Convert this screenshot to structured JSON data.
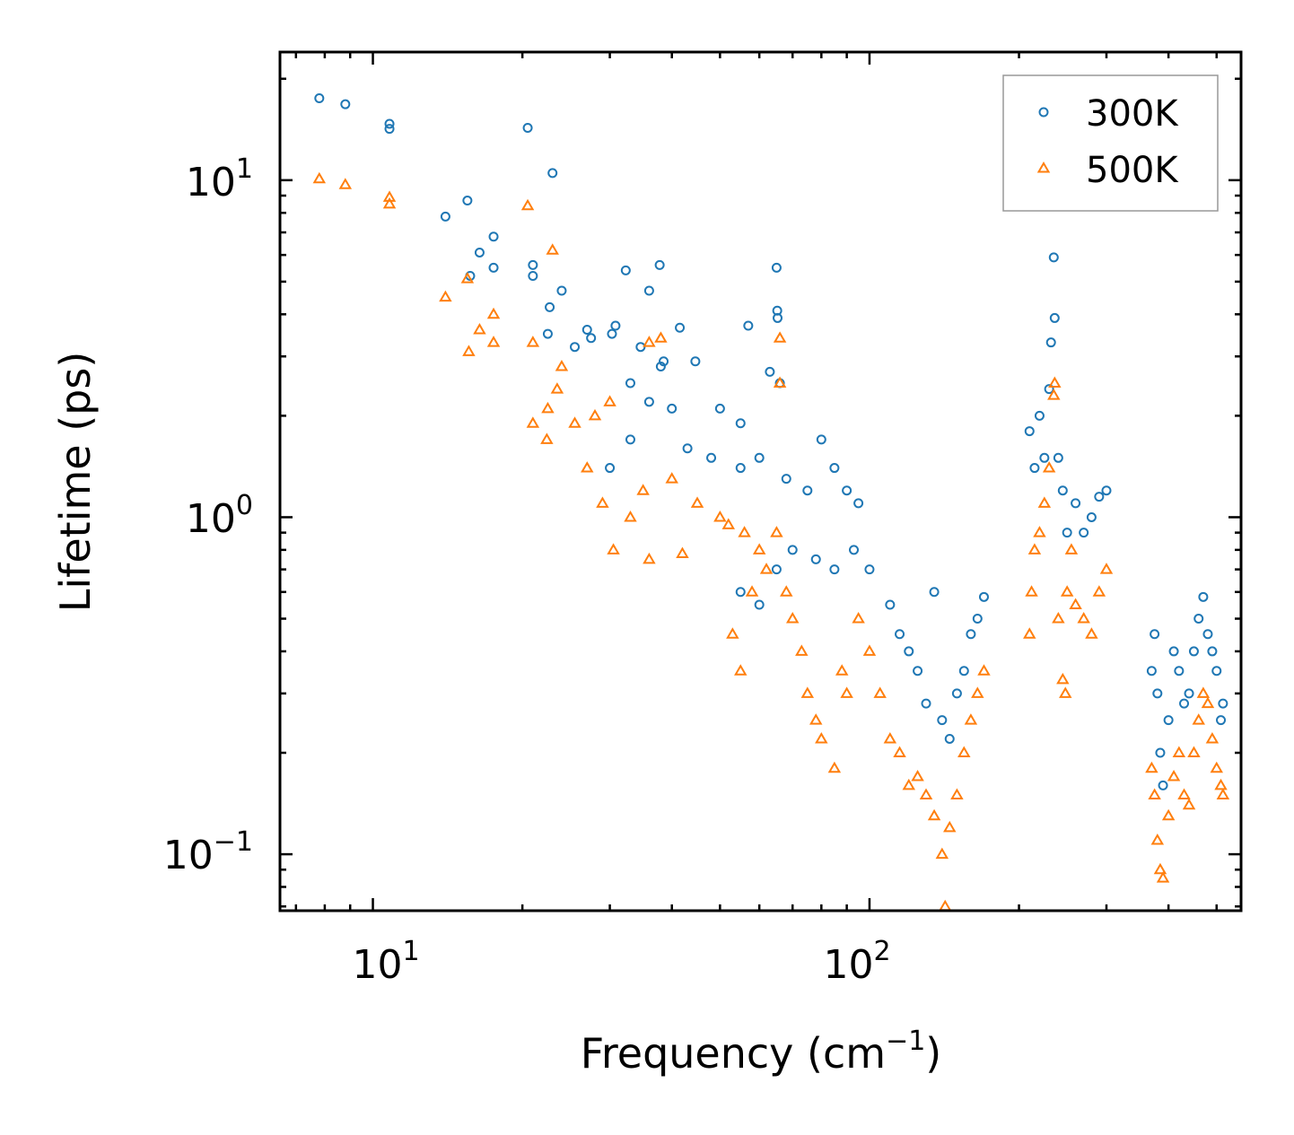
{
  "chart_data": {
    "type": "scatter",
    "xscale": "log",
    "yscale": "log",
    "xlabel_text": "Frequency (cm",
    "xlabel_sup": "−1",
    "xlabel_tail": ")",
    "ylabel": "Lifetime (ps)",
    "xlim": [
      6.5,
      560
    ],
    "ylim": [
      0.068,
      24
    ],
    "xticks": [
      {
        "base": "10",
        "exp": "1",
        "value": 10
      },
      {
        "base": "10",
        "exp": "2",
        "value": 100
      }
    ],
    "yticks": [
      {
        "base": "10",
        "exp": "1",
        "value": 10
      },
      {
        "base": "10",
        "exp": "0",
        "value": 1
      },
      {
        "base": "10",
        "exp": "−1",
        "value": 0.1
      }
    ],
    "legend": {
      "placement": "top-right",
      "entries": [
        "300K",
        "500K"
      ]
    },
    "series": [
      {
        "name": "300K",
        "color": "#1f77b4",
        "marker": "circle",
        "points": [
          [
            7.8,
            17.5
          ],
          [
            8.8,
            16.8
          ],
          [
            10.8,
            14.7
          ],
          [
            10.8,
            14.2
          ],
          [
            14,
            7.8
          ],
          [
            15.5,
            8.7
          ],
          [
            16.4,
            6.1
          ],
          [
            17.5,
            6.8
          ],
          [
            17.5,
            5.5
          ],
          [
            15.7,
            5.2
          ],
          [
            20.5,
            14.3
          ],
          [
            21,
            5.6
          ],
          [
            21,
            5.2
          ],
          [
            22.5,
            3.5
          ],
          [
            22.7,
            4.2
          ],
          [
            23,
            10.5
          ],
          [
            24,
            4.7
          ],
          [
            25.5,
            3.2
          ],
          [
            27,
            3.6
          ],
          [
            27.5,
            3.4
          ],
          [
            30.3,
            3.5
          ],
          [
            30.8,
            3.7
          ],
          [
            32.3,
            5.4
          ],
          [
            34.6,
            3.2
          ],
          [
            36,
            4.7
          ],
          [
            37.8,
            5.6
          ],
          [
            38,
            2.8
          ],
          [
            38.5,
            2.9
          ],
          [
            41.5,
            3.65
          ],
          [
            44.6,
            2.9
          ],
          [
            33,
            2.5
          ],
          [
            36,
            2.2
          ],
          [
            40,
            2.1
          ],
          [
            50,
            2.1
          ],
          [
            55,
            1.9
          ],
          [
            57,
            3.7
          ],
          [
            63,
            2.7
          ],
          [
            65,
            5.5
          ],
          [
            65.2,
            4.1
          ],
          [
            65.3,
            3.9
          ],
          [
            66,
            2.5
          ],
          [
            30,
            1.4
          ],
          [
            33,
            1.7
          ],
          [
            43,
            1.6
          ],
          [
            48,
            1.5
          ],
          [
            55,
            1.4
          ],
          [
            60,
            1.5
          ],
          [
            68,
            1.3
          ],
          [
            75,
            1.2
          ],
          [
            80,
            1.7
          ],
          [
            85,
            1.4
          ],
          [
            90,
            1.2
          ],
          [
            95,
            1.1
          ],
          [
            55,
            0.6
          ],
          [
            60,
            0.55
          ],
          [
            65,
            0.7
          ],
          [
            70,
            0.8
          ],
          [
            78,
            0.75
          ],
          [
            85,
            0.7
          ],
          [
            93,
            0.8
          ],
          [
            100,
            0.7
          ],
          [
            110,
            0.55
          ],
          [
            115,
            0.45
          ],
          [
            120,
            0.4
          ],
          [
            125,
            0.35
          ],
          [
            130,
            0.28
          ],
          [
            135,
            0.6
          ],
          [
            140,
            0.25
          ],
          [
            145,
            0.22
          ],
          [
            150,
            0.3
          ],
          [
            155,
            0.35
          ],
          [
            160,
            0.45
          ],
          [
            165,
            0.5
          ],
          [
            170,
            0.58
          ],
          [
            210,
            1.8
          ],
          [
            215,
            1.4
          ],
          [
            220,
            2.0
          ],
          [
            225,
            1.5
          ],
          [
            230,
            2.4
          ],
          [
            232,
            3.3
          ],
          [
            235,
            5.9
          ],
          [
            236,
            3.9
          ],
          [
            240,
            1.5
          ],
          [
            245,
            1.2
          ],
          [
            250,
            0.9
          ],
          [
            260,
            1.1
          ],
          [
            270,
            0.9
          ],
          [
            280,
            1.0
          ],
          [
            290,
            1.15
          ],
          [
            300,
            1.2
          ],
          [
            370,
            0.35
          ],
          [
            375,
            0.45
          ],
          [
            380,
            0.3
          ],
          [
            385,
            0.2
          ],
          [
            390,
            0.16
          ],
          [
            400,
            0.25
          ],
          [
            410,
            0.4
          ],
          [
            420,
            0.35
          ],
          [
            430,
            0.28
          ],
          [
            440,
            0.3
          ],
          [
            450,
            0.4
          ],
          [
            460,
            0.5
          ],
          [
            470,
            0.58
          ],
          [
            480,
            0.45
          ],
          [
            490,
            0.4
          ],
          [
            500,
            0.35
          ],
          [
            510,
            0.25
          ],
          [
            515,
            0.28
          ]
        ]
      },
      {
        "name": "500K",
        "color": "#ff7f0e",
        "marker": "triangle",
        "points": [
          [
            7.8,
            10.1
          ],
          [
            8.8,
            9.7
          ],
          [
            10.8,
            8.9
          ],
          [
            10.8,
            8.5
          ],
          [
            14,
            4.5
          ],
          [
            15.5,
            5.1
          ],
          [
            15.6,
            3.1
          ],
          [
            16.4,
            3.6
          ],
          [
            17.5,
            4.0
          ],
          [
            17.5,
            3.3
          ],
          [
            20.5,
            8.4
          ],
          [
            21,
            3.3
          ],
          [
            21,
            1.9
          ],
          [
            22.4,
            1.7
          ],
          [
            22.5,
            2.1
          ],
          [
            23,
            6.2
          ],
          [
            23.5,
            2.4
          ],
          [
            24,
            2.8
          ],
          [
            25.5,
            1.9
          ],
          [
            27,
            1.4
          ],
          [
            28,
            2.0
          ],
          [
            29,
            1.1
          ],
          [
            30,
            2.2
          ],
          [
            30.5,
            0.8
          ],
          [
            33,
            1.0
          ],
          [
            35,
            1.2
          ],
          [
            36,
            3.3
          ],
          [
            36,
            0.75
          ],
          [
            38,
            3.4
          ],
          [
            40,
            1.3
          ],
          [
            42,
            0.78
          ],
          [
            45,
            1.1
          ],
          [
            50,
            1.0
          ],
          [
            52,
            0.95
          ],
          [
            53,
            0.45
          ],
          [
            55,
            0.35
          ],
          [
            56,
            0.9
          ],
          [
            58,
            0.6
          ],
          [
            60,
            0.8
          ],
          [
            62,
            0.7
          ],
          [
            65,
            0.9
          ],
          [
            66,
            2.5
          ],
          [
            66,
            3.4
          ],
          [
            68,
            0.6
          ],
          [
            70,
            0.5
          ],
          [
            73,
            0.4
          ],
          [
            75,
            0.3
          ],
          [
            78,
            0.25
          ],
          [
            80,
            0.22
          ],
          [
            85,
            0.18
          ],
          [
            88,
            0.35
          ],
          [
            90,
            0.3
          ],
          [
            95,
            0.5
          ],
          [
            100,
            0.4
          ],
          [
            105,
            0.3
          ],
          [
            110,
            0.22
          ],
          [
            115,
            0.2
          ],
          [
            120,
            0.16
          ],
          [
            125,
            0.17
          ],
          [
            130,
            0.15
          ],
          [
            135,
            0.13
          ],
          [
            140,
            0.1
          ],
          [
            142,
            0.07
          ],
          [
            145,
            0.12
          ],
          [
            150,
            0.15
          ],
          [
            155,
            0.2
          ],
          [
            160,
            0.25
          ],
          [
            165,
            0.3
          ],
          [
            170,
            0.35
          ],
          [
            210,
            0.45
          ],
          [
            212,
            0.6
          ],
          [
            215,
            0.8
          ],
          [
            220,
            0.9
          ],
          [
            225,
            1.1
          ],
          [
            230,
            1.4
          ],
          [
            235,
            2.3
          ],
          [
            236,
            2.5
          ],
          [
            240,
            0.5
          ],
          [
            245,
            0.33
          ],
          [
            248,
            0.3
          ],
          [
            250,
            0.6
          ],
          [
            255,
            0.8
          ],
          [
            260,
            0.55
          ],
          [
            270,
            0.5
          ],
          [
            280,
            0.45
          ],
          [
            290,
            0.6
          ],
          [
            300,
            0.7
          ],
          [
            370,
            0.18
          ],
          [
            375,
            0.15
          ],
          [
            380,
            0.11
          ],
          [
            385,
            0.09
          ],
          [
            390,
            0.085
          ],
          [
            400,
            0.13
          ],
          [
            410,
            0.17
          ],
          [
            420,
            0.2
          ],
          [
            430,
            0.15
          ],
          [
            440,
            0.14
          ],
          [
            450,
            0.2
          ],
          [
            460,
            0.25
          ],
          [
            470,
            0.3
          ],
          [
            480,
            0.28
          ],
          [
            490,
            0.22
          ],
          [
            500,
            0.18
          ],
          [
            510,
            0.16
          ],
          [
            515,
            0.15
          ]
        ]
      }
    ]
  }
}
